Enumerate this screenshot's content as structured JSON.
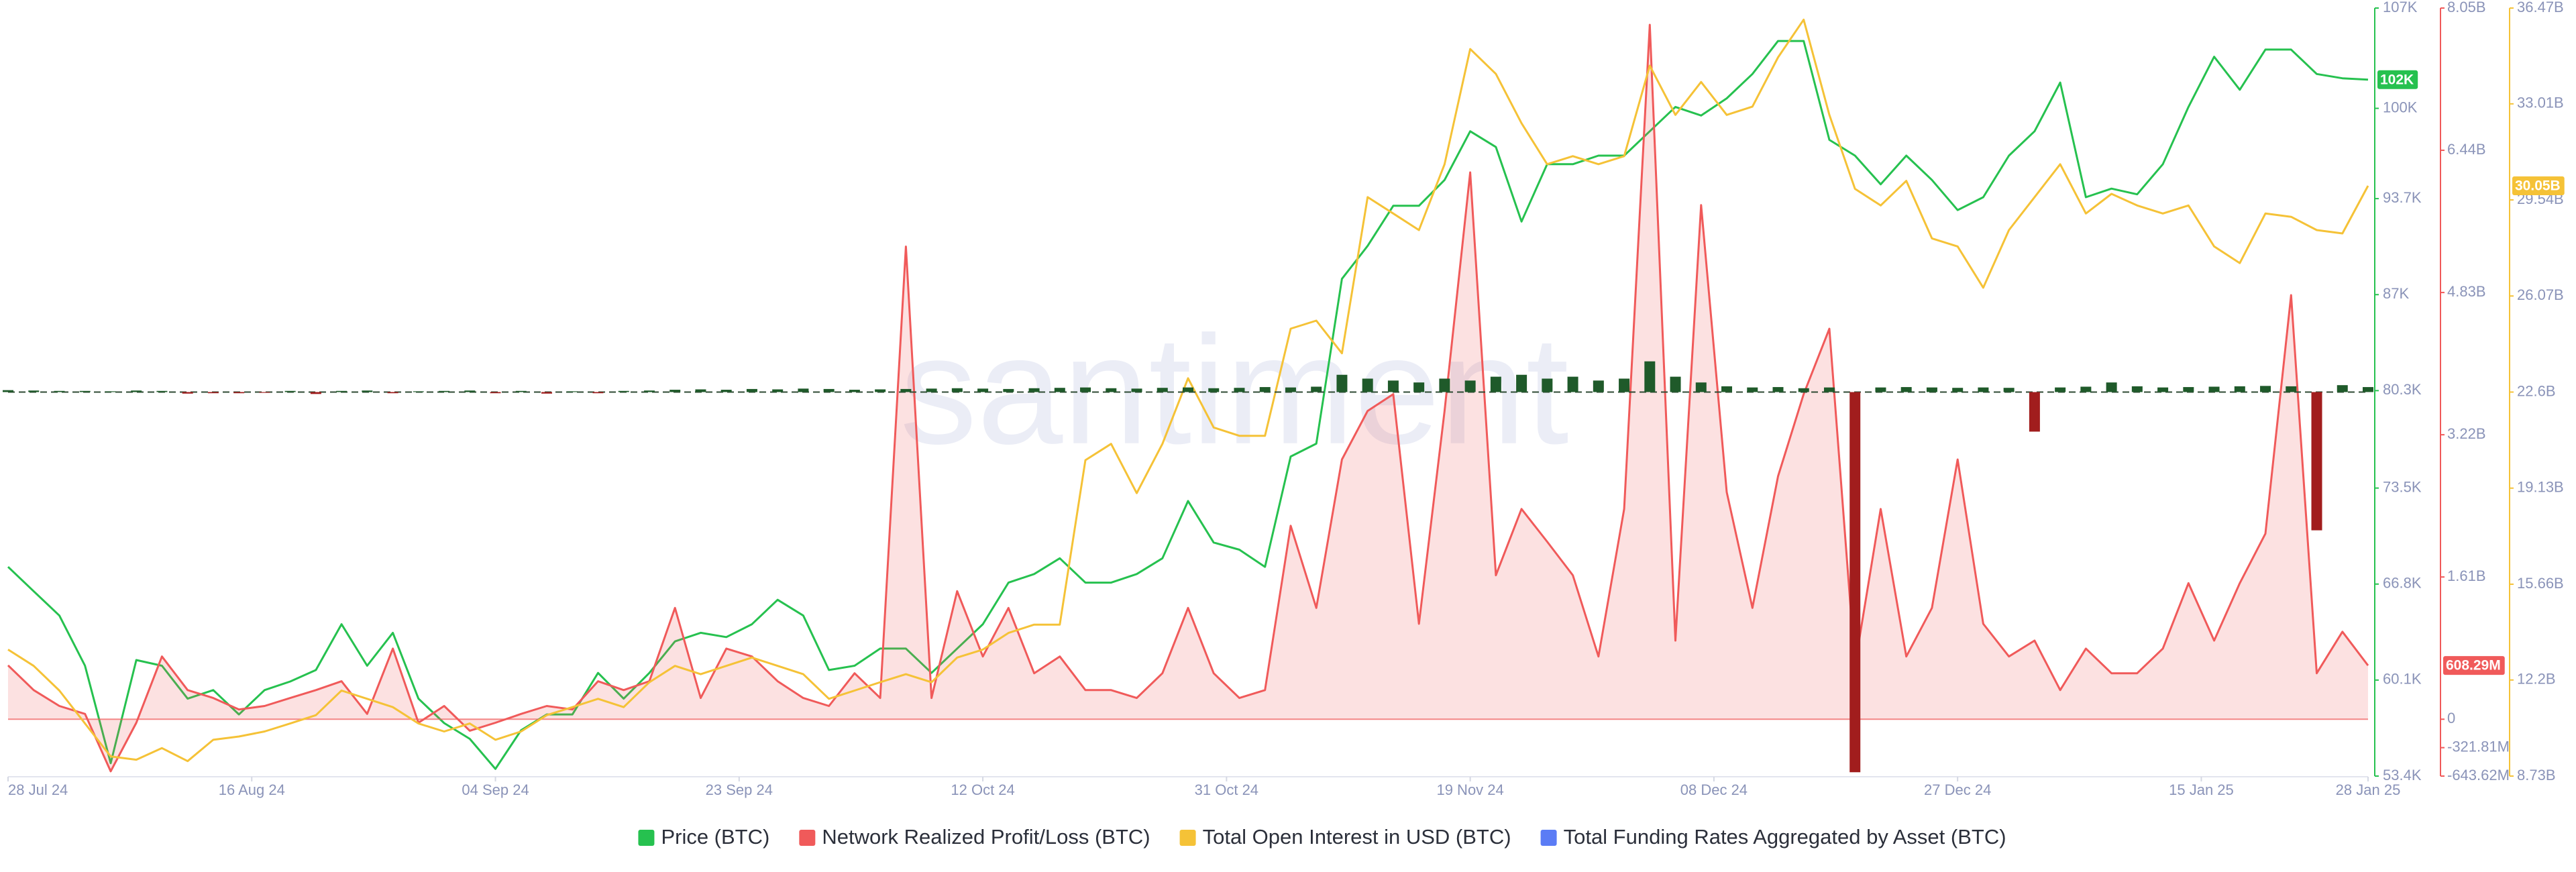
{
  "chart_data": {
    "type": "line",
    "watermark": "santiment",
    "x": [
      "2024-07-28",
      "2024-07-30",
      "2024-08-01",
      "2024-08-03",
      "2024-08-05",
      "2024-08-07",
      "2024-08-09",
      "2024-08-11",
      "2024-08-13",
      "2024-08-15",
      "2024-08-17",
      "2024-08-19",
      "2024-08-21",
      "2024-08-23",
      "2024-08-25",
      "2024-08-27",
      "2024-08-29",
      "2024-08-31",
      "2024-09-02",
      "2024-09-04",
      "2024-09-06",
      "2024-09-08",
      "2024-09-10",
      "2024-09-12",
      "2024-09-14",
      "2024-09-16",
      "2024-09-18",
      "2024-09-20",
      "2024-09-22",
      "2024-09-24",
      "2024-09-26",
      "2024-09-28",
      "2024-09-30",
      "2024-10-02",
      "2024-10-04",
      "2024-10-06",
      "2024-10-08",
      "2024-10-10",
      "2024-10-12",
      "2024-10-14",
      "2024-10-16",
      "2024-10-18",
      "2024-10-20",
      "2024-10-22",
      "2024-10-24",
      "2024-10-26",
      "2024-10-28",
      "2024-10-30",
      "2024-11-01",
      "2024-11-03",
      "2024-11-05",
      "2024-11-07",
      "2024-11-09",
      "2024-11-11",
      "2024-11-13",
      "2024-11-15",
      "2024-11-17",
      "2024-11-19",
      "2024-11-21",
      "2024-11-23",
      "2024-11-25",
      "2024-11-27",
      "2024-11-29",
      "2024-12-01",
      "2024-12-03",
      "2024-12-05",
      "2024-12-07",
      "2024-12-09",
      "2024-12-11",
      "2024-12-13",
      "2024-12-15",
      "2024-12-17",
      "2024-12-19",
      "2024-12-21",
      "2024-12-23",
      "2024-12-25",
      "2024-12-27",
      "2024-12-29",
      "2024-12-31",
      "2025-01-02",
      "2025-01-04",
      "2025-01-06",
      "2025-01-08",
      "2025-01-10",
      "2025-01-12",
      "2025-01-14",
      "2025-01-16",
      "2025-01-18",
      "2025-01-20",
      "2025-01-22",
      "2025-01-24",
      "2025-01-26",
      "2025-01-28"
    ],
    "xlim": [
      "2024-07-28",
      "2025-01-28"
    ],
    "xticks": [
      {
        "value": "2024-07-28",
        "label": "28 Jul 24"
      },
      {
        "value": "2024-08-16",
        "label": "16 Aug 24"
      },
      {
        "value": "2024-09-04",
        "label": "04 Sep 24"
      },
      {
        "value": "2024-09-23",
        "label": "23 Sep 24"
      },
      {
        "value": "2024-10-12",
        "label": "12 Oct 24"
      },
      {
        "value": "2024-10-31",
        "label": "31 Oct 24"
      },
      {
        "value": "2024-11-19",
        "label": "19 Nov 24"
      },
      {
        "value": "2024-12-08",
        "label": "08 Dec 24"
      },
      {
        "value": "2024-12-27",
        "label": "27 Dec 24"
      },
      {
        "value": "2025-01-15",
        "label": "15 Jan 25"
      },
      {
        "value": "2025-01-28",
        "label": "28 Jan 25"
      }
    ],
    "ylim": [
      53.4,
      107
    ],
    "yticks": [
      {
        "value": 53.4,
        "label": "53.4K"
      },
      {
        "value": 60.1,
        "label": "60.1K"
      },
      {
        "value": 66.8,
        "label": "66.8K"
      },
      {
        "value": 73.5,
        "label": "73.5K"
      },
      {
        "value": 80.3,
        "label": "80.3K"
      },
      {
        "value": 87,
        "label": "87K"
      },
      {
        "value": 93.7,
        "label": "93.7K"
      },
      {
        "value": 100,
        "label": "100K"
      },
      {
        "value": 107,
        "label": "107K"
      }
    ],
    "y2lim": [
      -0.64362,
      8.05
    ],
    "y2ticks": [
      {
        "value": -0.64362,
        "label": "-643.62M"
      },
      {
        "value": -0.32181,
        "label": "-321.81M"
      },
      0,
      {
        "value": 1.61,
        "label": "1.61B"
      },
      {
        "value": 3.22,
        "label": "3.22B"
      },
      {
        "value": 4.83,
        "label": "4.83B"
      },
      {
        "value": 6.44,
        "label": "6.44B"
      },
      {
        "value": 8.05,
        "label": "8.05B"
      }
    ],
    "y3lim": [
      8.73,
      36.47
    ],
    "y3ticks": [
      {
        "value": 8.73,
        "label": "8.73B"
      },
      {
        "value": 12.2,
        "label": "12.2B"
      },
      {
        "value": 15.66,
        "label": "15.66B"
      },
      {
        "value": 19.13,
        "label": "19.13B"
      },
      {
        "value": 22.6,
        "label": "22.6B"
      },
      {
        "value": 26.07,
        "label": "26.07B"
      },
      {
        "value": 29.54,
        "label": "29.54B"
      },
      {
        "value": 33.01,
        "label": "33.01B"
      },
      {
        "value": 36.47,
        "label": "36.47B"
      }
    ],
    "y4lim": [
      -0.1,
      0.1
    ],
    "grid": false,
    "legend": "bottom",
    "series": [
      {
        "name": "Price (BTC)",
        "color": "#26c14f",
        "axis": "y",
        "last_label": "102K",
        "values": [
          68.0,
          66.3,
          64.6,
          61.1,
          54.3,
          61.5,
          61.1,
          58.8,
          59.4,
          57.7,
          59.4,
          60.0,
          60.8,
          64.0,
          61.1,
          63.4,
          58.8,
          57.1,
          56.0,
          53.9,
          56.6,
          57.7,
          57.7,
          60.6,
          58.8,
          60.6,
          62.8,
          63.4,
          63.1,
          64.0,
          65.7,
          64.6,
          60.8,
          61.1,
          62.3,
          62.3,
          60.6,
          62.3,
          64.0,
          66.9,
          67.5,
          68.6,
          66.9,
          66.9,
          67.5,
          68.6,
          72.6,
          69.7,
          69.2,
          68.0,
          75.7,
          76.6,
          88.1,
          90.4,
          93.2,
          93.2,
          95.0,
          98.4,
          97.3,
          92.1,
          96.1,
          96.1,
          96.7,
          96.7,
          98.4,
          100.1,
          99.5,
          100.7,
          102.4,
          104.7,
          104.7,
          97.8,
          96.7,
          94.7,
          96.7,
          95.0,
          92.9,
          93.8,
          96.7,
          98.4,
          101.8,
          93.8,
          94.4,
          94.0,
          96.1,
          100.1,
          103.6,
          101.3,
          104.1,
          104.1,
          102.4,
          102.1,
          102.0
        ]
      },
      {
        "name": "Network Realized Profit/Loss (BTC)",
        "color": "#f05a5a",
        "axis": "y2",
        "last_label": "608.29M",
        "values": [
          0.61,
          0.33,
          0.15,
          0.06,
          -0.59,
          -0.04,
          0.71,
          0.33,
          0.24,
          0.11,
          0.15,
          0.24,
          0.33,
          0.43,
          0.06,
          0.8,
          -0.04,
          0.15,
          -0.13,
          -0.04,
          0.06,
          0.15,
          0.11,
          0.43,
          0.33,
          0.43,
          1.26,
          0.24,
          0.8,
          0.71,
          0.43,
          0.24,
          0.15,
          0.52,
          0.24,
          5.35,
          0.24,
          1.45,
          0.71,
          1.26,
          0.52,
          0.71,
          0.33,
          0.33,
          0.24,
          0.52,
          1.26,
          0.52,
          0.24,
          0.33,
          2.19,
          1.26,
          2.94,
          3.49,
          3.68,
          1.08,
          3.49,
          6.19,
          1.63,
          2.38,
          2.01,
          1.63,
          0.71,
          2.38,
          7.86,
          0.89,
          5.82,
          2.57,
          1.26,
          2.75,
          3.68,
          4.42,
          0.61,
          2.38,
          0.71,
          1.26,
          2.94,
          1.08,
          0.71,
          0.89,
          0.33,
          0.8,
          0.52,
          0.52,
          0.8,
          1.54,
          0.89,
          1.54,
          2.1,
          4.8,
          0.52,
          0.99,
          0.60829
        ]
      },
      {
        "name": "Total Open Interest in USD (BTC)",
        "color": "#f5c237",
        "axis": "y3",
        "last_label": "30.05B",
        "values": [
          13.3,
          12.71,
          11.82,
          10.63,
          9.44,
          9.32,
          9.74,
          9.27,
          10.04,
          10.16,
          10.34,
          10.63,
          10.93,
          11.82,
          11.52,
          11.22,
          10.63,
          10.34,
          10.63,
          10.04,
          10.34,
          10.93,
          11.22,
          11.52,
          11.22,
          12.12,
          12.71,
          12.41,
          12.71,
          13.01,
          12.71,
          12.41,
          11.52,
          11.82,
          12.12,
          12.41,
          12.12,
          13.01,
          13.3,
          13.9,
          14.2,
          14.2,
          20.14,
          20.73,
          18.95,
          20.73,
          23.1,
          21.32,
          21.02,
          21.02,
          24.89,
          25.18,
          24.0,
          29.64,
          29.05,
          28.45,
          30.83,
          34.99,
          34.09,
          32.31,
          30.83,
          31.12,
          30.83,
          31.12,
          34.39,
          32.61,
          33.8,
          32.61,
          32.91,
          34.69,
          36.05,
          32.61,
          29.94,
          29.34,
          30.23,
          28.15,
          27.86,
          26.37,
          28.45,
          29.64,
          30.83,
          29.05,
          29.76,
          29.34,
          29.05,
          29.34,
          27.86,
          27.26,
          29.05,
          28.93,
          28.45,
          28.33,
          30.05
        ]
      },
      {
        "name": "Total Funding Rates Aggregated by Asset (BTC)",
        "color": "#5b7cf5",
        "axis": "y4",
        "bars": true,
        "positive_color": "#1f5a2a",
        "negative_color": "#a11d1d",
        "values": [
          0.0005,
          0.0004,
          0.0003,
          0.0003,
          0.0002,
          0.0004,
          0.0003,
          -0.0004,
          -0.0003,
          -0.0003,
          -0.0002,
          0.0003,
          -0.0005,
          0.0003,
          0.0004,
          -0.0003,
          0.0002,
          0.0003,
          0.0004,
          -0.0003,
          0.0003,
          -0.0004,
          0.0002,
          -0.0003,
          0.0003,
          0.0004,
          0.0006,
          0.0007,
          0.0006,
          0.0008,
          0.0007,
          0.0009,
          0.0008,
          0.0006,
          0.0007,
          0.0008,
          0.0009,
          0.001,
          0.0009,
          0.0008,
          0.001,
          0.0011,
          0.0012,
          0.001,
          0.0009,
          0.0011,
          0.0012,
          0.001,
          0.0011,
          0.0013,
          0.0012,
          0.0014,
          0.0045,
          0.0035,
          0.003,
          0.0025,
          0.0035,
          0.003,
          0.004,
          0.0045,
          0.0035,
          0.004,
          0.003,
          0.0035,
          0.008,
          0.004,
          0.0025,
          0.0015,
          0.0012,
          0.0013,
          0.001,
          0.0012,
          -0.099,
          0.0012,
          0.0013,
          0.0012,
          0.0011,
          0.0012,
          0.0011,
          -0.0103,
          0.0012,
          0.0014,
          0.0025,
          0.0015,
          0.0012,
          0.0013,
          0.0014,
          0.0015,
          0.0016,
          0.0015,
          -0.036,
          0.0018,
          0.0013
        ]
      }
    ]
  }
}
